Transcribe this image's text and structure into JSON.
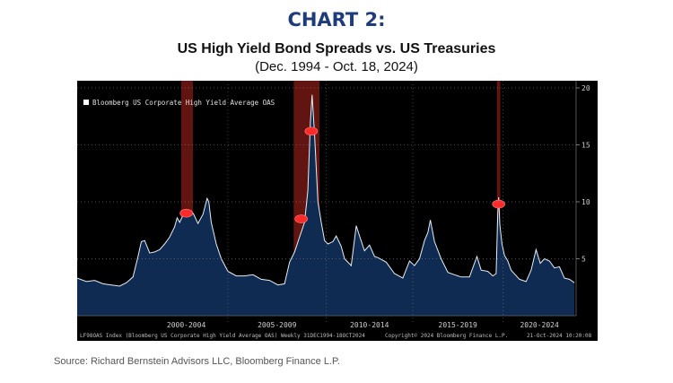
{
  "titles": {
    "chart_number": "CHART 2:",
    "title": "US High Yield Bond Spreads vs. US Treasuries",
    "range": "(Dec. 1994 - Oct. 18, 2024)"
  },
  "source": "Source: Richard Bernstein Advisors LLC, Bloomberg Finance L.P.",
  "colors": {
    "background": "#000000",
    "area_fill": "#0f2b52",
    "line": "#e6eef5",
    "recession": "#b3261e",
    "recession_marker": "#ff2a2a",
    "axis_text": "#cfcfcf"
  },
  "chart_data": {
    "type": "area",
    "title": "US High Yield Bond Spreads vs. US Treasuries",
    "legend": "Bloomberg US Corporate High Yield Average OAS",
    "legend_position": "top-left",
    "xlabel": "",
    "ylabel": "",
    "xlim": [
      1994.95,
      2024.9
    ],
    "ylim": [
      0,
      20
    ],
    "yticks": [
      5,
      10,
      15,
      20
    ],
    "x_ticks": [
      {
        "label": "2000-2004",
        "start": 1999.0,
        "end": 2004.0
      },
      {
        "label": "2005-2009",
        "start": 2004.0,
        "end": 2009.9
      },
      {
        "label": "2010-2014",
        "start": 2009.9,
        "end": 2015.1
      },
      {
        "label": "2015-2019",
        "start": 2015.1,
        "end": 2020.5
      },
      {
        "label": "2020-2024",
        "start": 2020.5,
        "end": 2024.9
      }
    ],
    "recessions": [
      {
        "start": 2001.2,
        "end": 2001.9
      },
      {
        "start": 2007.95,
        "end": 2009.5
      },
      {
        "start": 2020.15,
        "end": 2020.35
      }
    ],
    "recession_markers": [
      {
        "x": 2001.5,
        "y": 9.0
      },
      {
        "x": 2008.4,
        "y": 8.5
      },
      {
        "x": 2009.0,
        "y": 16.2
      },
      {
        "x": 2020.25,
        "y": 9.8
      }
    ],
    "x": [
      1994.95,
      1995.5,
      1996.0,
      1996.5,
      1997.0,
      1997.5,
      1997.9,
      1998.3,
      1998.6,
      1998.8,
      1999.0,
      1999.3,
      1999.6,
      1999.9,
      2000.2,
      2000.5,
      2000.8,
      2000.95,
      2001.1,
      2001.3,
      2001.6,
      2001.8,
      2001.95,
      2002.2,
      2002.5,
      2002.75,
      2002.85,
      2003.0,
      2003.3,
      2003.6,
      2004.0,
      2004.5,
      2005.0,
      2005.5,
      2006.0,
      2006.5,
      2007.0,
      2007.4,
      2007.7,
      2008.0,
      2008.3,
      2008.6,
      2008.8,
      2008.95,
      2009.05,
      2009.2,
      2009.4,
      2009.6,
      2009.8,
      2010.0,
      2010.3,
      2010.5,
      2010.8,
      2011.0,
      2011.4,
      2011.7,
      2011.9,
      2012.2,
      2012.5,
      2012.8,
      2013.0,
      2013.5,
      2014.0,
      2014.5,
      2014.9,
      2015.2,
      2015.5,
      2015.8,
      2016.0,
      2016.15,
      2016.4,
      2016.8,
      2017.2,
      2017.6,
      2018.0,
      2018.5,
      2018.95,
      2019.2,
      2019.6,
      2019.9,
      2020.1,
      2020.2,
      2020.25,
      2020.32,
      2020.45,
      2020.6,
      2020.8,
      2021.0,
      2021.5,
      2021.9,
      2022.2,
      2022.5,
      2022.75,
      2023.0,
      2023.3,
      2023.6,
      2023.9,
      2024.2,
      2024.5,
      2024.8
    ],
    "values": [
      3.3,
      3.0,
      3.1,
      2.8,
      2.7,
      2.6,
      2.9,
      3.4,
      5.2,
      6.5,
      6.6,
      5.5,
      5.6,
      5.8,
      6.3,
      6.9,
      7.8,
      8.6,
      8.2,
      8.8,
      8.7,
      9.2,
      8.9,
      8.1,
      8.9,
      10.3,
      10.0,
      8.2,
      6.3,
      5.0,
      3.9,
      3.5,
      3.5,
      3.6,
      3.2,
      3.1,
      2.7,
      2.8,
      4.7,
      5.6,
      6.9,
      8.2,
      11.0,
      17.0,
      19.4,
      16.0,
      10.0,
      8.2,
      6.6,
      6.3,
      6.5,
      7.0,
      6.1,
      5.0,
      4.4,
      7.9,
      7.0,
      5.7,
      6.2,
      5.2,
      5.1,
      4.7,
      3.7,
      3.3,
      4.8,
      4.4,
      5.0,
      6.6,
      7.3,
      8.4,
      6.5,
      5.0,
      3.8,
      3.6,
      3.4,
      3.4,
      5.2,
      4.0,
      3.9,
      3.5,
      3.7,
      9.0,
      10.4,
      8.0,
      6.3,
      5.3,
      4.8,
      4.0,
      3.2,
      3.0,
      4.0,
      5.8,
      4.6,
      5.0,
      4.8,
      4.2,
      4.3,
      3.3,
      3.2,
      2.9
    ]
  }
}
